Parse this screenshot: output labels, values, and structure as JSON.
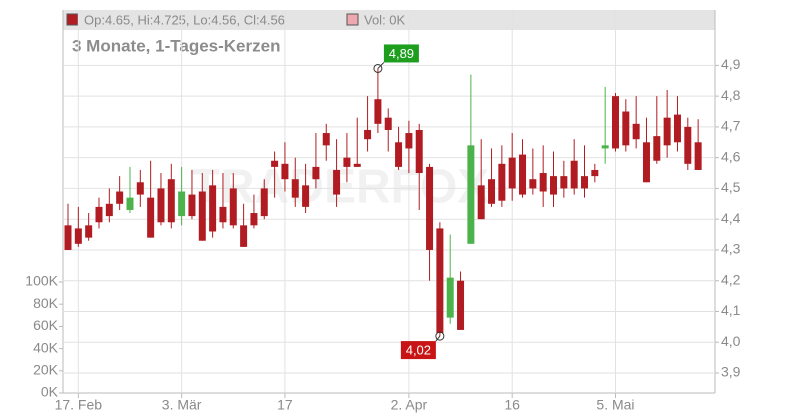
{
  "chart_data": {
    "type": "candlestick",
    "subtitle": "3 Monate, 1-Tages-Kerzen",
    "ohlc_legend": "Op:4.65, Hi:4.725, Lo:4.56, Cl:4.56",
    "volume_legend": "Vol: 0K",
    "watermark": "TRADERFOX",
    "categories": [
      null,
      "17. Feb",
      null,
      null,
      null,
      null,
      null,
      null,
      null,
      null,
      null,
      "3. Mär",
      null,
      null,
      null,
      null,
      null,
      null,
      null,
      null,
      null,
      "17",
      null,
      null,
      null,
      null,
      null,
      null,
      null,
      null,
      null,
      null,
      null,
      "2. Apr",
      null,
      null,
      null,
      null,
      null,
      null,
      null,
      null,
      null,
      "16",
      null,
      null,
      null,
      null,
      null,
      null,
      null,
      null,
      null,
      "5. Mai",
      null,
      null,
      null,
      null,
      null,
      null,
      null,
      null
    ],
    "series": {
      "open": [
        4.38,
        4.37,
        4.38,
        4.44,
        4.45,
        4.49,
        4.43,
        4.52,
        4.47,
        4.5,
        4.53,
        4.41,
        4.48,
        4.49,
        4.51,
        4.44,
        4.5,
        4.38,
        4.42,
        4.5,
        4.59,
        4.58,
        4.53,
        4.51,
        4.57,
        4.68,
        4.56,
        4.6,
        4.58,
        4.69,
        4.79,
        4.73,
        4.65,
        4.68,
        4.69,
        4.57,
        4.37,
        4.08,
        4.2,
        4.32,
        4.51,
        4.53,
        4.58,
        4.6,
        4.61,
        4.53,
        4.55,
        4.54,
        4.54,
        4.59,
        4.54,
        4.56,
        4.63,
        4.8,
        4.75,
        4.71,
        4.65,
        4.67,
        4.73,
        4.74,
        4.7,
        4.65
      ],
      "high": [
        4.45,
        4.44,
        4.42,
        4.47,
        4.5,
        4.54,
        4.57,
        4.56,
        4.59,
        4.55,
        4.58,
        4.57,
        4.56,
        4.55,
        4.56,
        4.55,
        4.55,
        4.45,
        4.48,
        4.53,
        4.62,
        4.65,
        4.6,
        4.58,
        4.68,
        4.71,
        4.66,
        4.68,
        4.73,
        4.8,
        4.89,
        4.76,
        4.7,
        4.72,
        4.71,
        4.58,
        4.39,
        4.35,
        4.23,
        4.87,
        4.66,
        4.63,
        4.64,
        4.68,
        4.66,
        4.63,
        4.64,
        4.62,
        4.59,
        4.66,
        4.64,
        4.58,
        4.83,
        4.81,
        4.79,
        4.8,
        4.73,
        4.8,
        4.82,
        4.8,
        4.73,
        4.725
      ],
      "low": [
        4.3,
        4.31,
        4.33,
        4.37,
        4.39,
        4.43,
        4.42,
        4.44,
        4.34,
        4.38,
        4.37,
        4.38,
        4.4,
        4.33,
        4.34,
        4.37,
        4.37,
        4.31,
        4.37,
        4.4,
        4.47,
        4.49,
        4.44,
        4.42,
        4.5,
        4.59,
        4.44,
        4.52,
        4.57,
        4.62,
        4.68,
        4.62,
        4.56,
        4.55,
        4.43,
        4.2,
        4.02,
        4.06,
        4.04,
        4.32,
        4.4,
        4.44,
        4.44,
        4.46,
        4.47,
        4.48,
        4.44,
        4.44,
        4.47,
        4.48,
        4.47,
        4.52,
        4.58,
        4.62,
        4.62,
        4.63,
        4.52,
        4.58,
        4.6,
        4.62,
        4.56,
        4.56
      ],
      "close": [
        4.3,
        4.32,
        4.34,
        4.39,
        4.41,
        4.45,
        4.47,
        4.48,
        4.34,
        4.39,
        4.39,
        4.49,
        4.41,
        4.33,
        4.36,
        4.39,
        4.38,
        4.31,
        4.38,
        4.41,
        4.57,
        4.53,
        4.47,
        4.44,
        4.53,
        4.64,
        4.48,
        4.57,
        4.57,
        4.66,
        4.71,
        4.69,
        4.57,
        4.63,
        4.55,
        4.3,
        4.03,
        4.21,
        4.04,
        4.64,
        4.4,
        4.45,
        4.46,
        4.5,
        4.48,
        4.5,
        4.49,
        4.48,
        4.5,
        4.5,
        4.5,
        4.54,
        4.64,
        4.63,
        4.64,
        4.66,
        4.52,
        4.59,
        4.64,
        4.65,
        4.58,
        4.56
      ]
    },
    "up_color": "#4cb34c",
    "down_color": "#b01c22",
    "ylim": [
      3.835,
      5.08
    ],
    "yticks": [
      {
        "value": 3.9,
        "label": "3,9"
      },
      {
        "value": 4.0,
        "label": "4,0"
      },
      {
        "value": 4.1,
        "label": "4,1"
      },
      {
        "value": 4.2,
        "label": "4,2"
      },
      {
        "value": 4.3,
        "label": "4,3"
      },
      {
        "value": 4.4,
        "label": "4,4"
      },
      {
        "value": 4.5,
        "label": "4,5"
      },
      {
        "value": 4.6,
        "label": "4,6"
      },
      {
        "value": 4.7,
        "label": "4,7"
      },
      {
        "value": 4.8,
        "label": "4,8"
      },
      {
        "value": 4.9,
        "label": "4,9"
      }
    ],
    "y2lim": [
      0,
      100000
    ],
    "y2ticks": [
      {
        "value": 0,
        "label": "0K"
      },
      {
        "value": 20000,
        "label": "20K"
      },
      {
        "value": 40000,
        "label": "40K"
      },
      {
        "value": 60000,
        "label": "60K"
      },
      {
        "value": 80000,
        "label": "80K"
      },
      {
        "value": 100000,
        "label": "100K"
      }
    ],
    "annotations": [
      {
        "value": 4.89,
        "label": "4,89",
        "color": "#1e9e1e"
      },
      {
        "value": 4.02,
        "label": "4,02",
        "color": "#c81414"
      }
    ],
    "grid": true
  }
}
